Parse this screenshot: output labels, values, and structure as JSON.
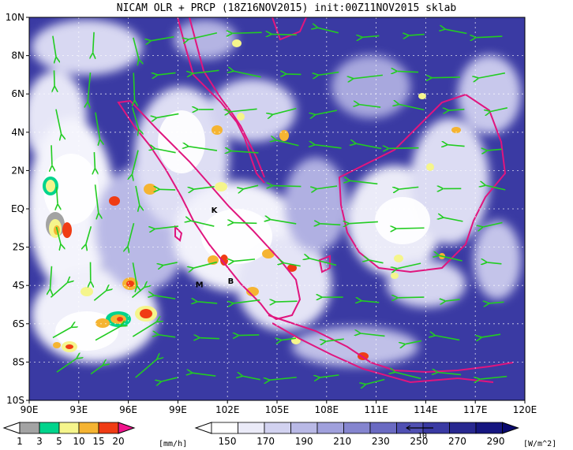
{
  "title": "NICAM OLR + PRCP (18Z16NOV2015) init:00Z11NOV2015 sklab",
  "map": {
    "lon_range": [
      90,
      120
    ],
    "lat_range": [
      -10,
      10
    ],
    "lon_ticks": [
      "90E",
      "93E",
      "96E",
      "99E",
      "102E",
      "105E",
      "108E",
      "111E",
      "114E",
      "117E",
      "120E"
    ],
    "lat_ticks": [
      "10N",
      "8N",
      "6N",
      "4N",
      "2N",
      "EQ",
      "2S",
      "4S",
      "6S",
      "8S",
      "10S"
    ],
    "place_labels": [
      {
        "text": "K",
        "lon": 101.2,
        "lat": -0.2
      },
      {
        "text": "M",
        "lon": 100.3,
        "lat": -4.1
      },
      {
        "text": "B",
        "lon": 102.2,
        "lat": -3.9
      }
    ],
    "coastline_color": "#e0157e",
    "wind_vector_color": "#22cc22",
    "grid": true
  },
  "precip_colorbar": {
    "labels": [
      "1",
      "3",
      "5",
      "10",
      "15",
      "20"
    ],
    "unit": "[mm/h]",
    "colors": [
      "#a3a3a3",
      "#00d48c",
      "#f5f58c",
      "#f5b432",
      "#f03c14",
      "#f0148c"
    ]
  },
  "olr_colorbar": {
    "labels": [
      "150",
      "170",
      "190",
      "210",
      "230",
      "250",
      "270",
      "290"
    ],
    "unit": "[W/m^2]",
    "colors": [
      "#ffffff",
      "#ebebf8",
      "#d2d2f0",
      "#b9b9e6",
      "#a0a0dc",
      "#8585cf",
      "#6a6ac2",
      "#5050b3",
      "#3a3aa3",
      "#282890",
      "#161680",
      "#0a0a6e"
    ],
    "reference_vector_label": "10"
  }
}
